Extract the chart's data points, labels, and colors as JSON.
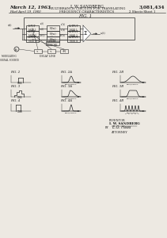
{
  "title_date": "March 12, 1963",
  "title_inventor": "I. W. SANDBERG",
  "title_patent": "3,081,434",
  "title_line1": "MULTIBRANCH CIRCUITS FOR TRANSLATING",
  "title_line2": "FREQUENCY CHARACTERISTICS",
  "title_filed": "Filed April 19, 1960",
  "title_sheet": "2 Sheets-Sheet 1",
  "background_color": "#ede9e2",
  "text_color": "#1a1a1a",
  "line_color": "#2a2a2a",
  "inventor_line1": "INVENTOR",
  "inventor_line2": "I. W. SANDBERG",
  "by_label": "BY",
  "attorney_label": "ATTORNEY"
}
